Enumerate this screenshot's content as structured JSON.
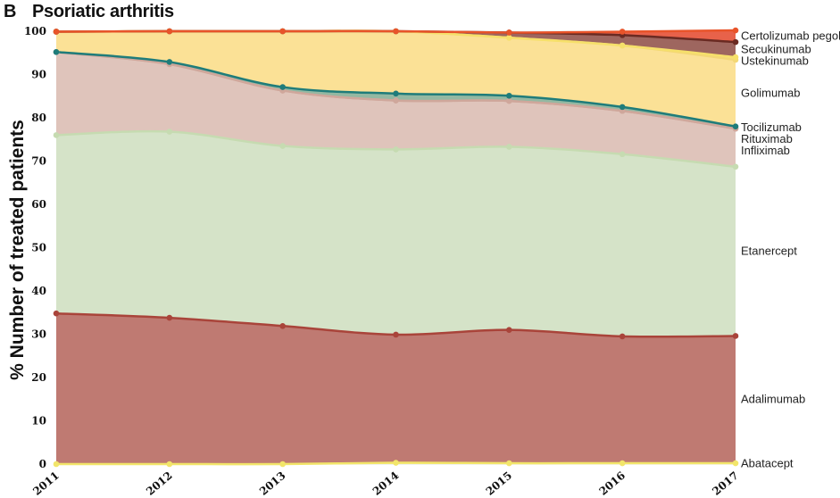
{
  "panel_letter": "B",
  "chart_data": {
    "type": "area",
    "title": "Psoriatic arthritis",
    "xlabel": "",
    "ylabel": "% Number of treated patients",
    "x": [
      "2011",
      "2012",
      "2013",
      "2014",
      "2015",
      "2016",
      "2017"
    ],
    "ylim": [
      0,
      100
    ],
    "yticks": [
      0,
      10,
      20,
      30,
      40,
      50,
      60,
      70,
      80,
      90,
      100
    ],
    "stacked": true,
    "grid": true,
    "legend": "right-side inline labels",
    "series": [
      {
        "name": "Abatacept",
        "values": [
          0,
          0,
          0,
          0.3,
          0.2,
          0.2,
          0.2
        ],
        "fill": "#f7f3a0",
        "line": "#f2e56a"
      },
      {
        "name": "Adalimumab",
        "values": [
          34.8,
          33.8,
          31.9,
          29.6,
          30.8,
          29.3,
          29.4
        ],
        "fill": "#bf7a72",
        "line": "#a9443a"
      },
      {
        "name": "Etanercept",
        "values": [
          41.2,
          43.0,
          41.6,
          42.8,
          42.3,
          42.1,
          39.1
        ],
        "fill": "#d5e3c8",
        "line": "#c6dbb1"
      },
      {
        "name": "Infliximab",
        "values": [
          19.2,
          15.6,
          12.8,
          11.3,
          10.6,
          10.0,
          8.8
        ],
        "fill": "#dfc4bb",
        "line": "#cfa79b"
      },
      {
        "name": "Rituximab",
        "values": [
          0,
          0,
          0,
          0,
          0,
          0,
          0
        ],
        "fill": "#dfc4bb",
        "line": "#cfa79b"
      },
      {
        "name": "Tocilizumab",
        "values": [
          0,
          0.5,
          0.8,
          1.6,
          1.2,
          0.9,
          0.5
        ],
        "fill": "#93b8a2",
        "line": "#1f7c7a"
      },
      {
        "name": "Golimumab",
        "values": [
          4.7,
          7.1,
          12.9,
          14.4,
          13.4,
          14.2,
          15.4
        ],
        "fill": "#fbe196",
        "line": "#f3d775"
      },
      {
        "name": "Ustekinumab",
        "values": [
          0,
          0,
          0,
          0,
          0,
          0,
          0.6
        ],
        "fill": "#fbe196",
        "line": "#f6e06a"
      },
      {
        "name": "Secukinumab",
        "values": [
          0,
          0,
          0,
          0,
          1.2,
          2.4,
          3.5
        ],
        "fill": "#9e665f",
        "line": "#6a2a22"
      },
      {
        "name": "Certolizumab pegol",
        "values": [
          0,
          0,
          0,
          0,
          0,
          0.8,
          2.7
        ],
        "fill": "#e8624a",
        "line": "#e8542a"
      }
    ],
    "label_color": "#222222"
  }
}
